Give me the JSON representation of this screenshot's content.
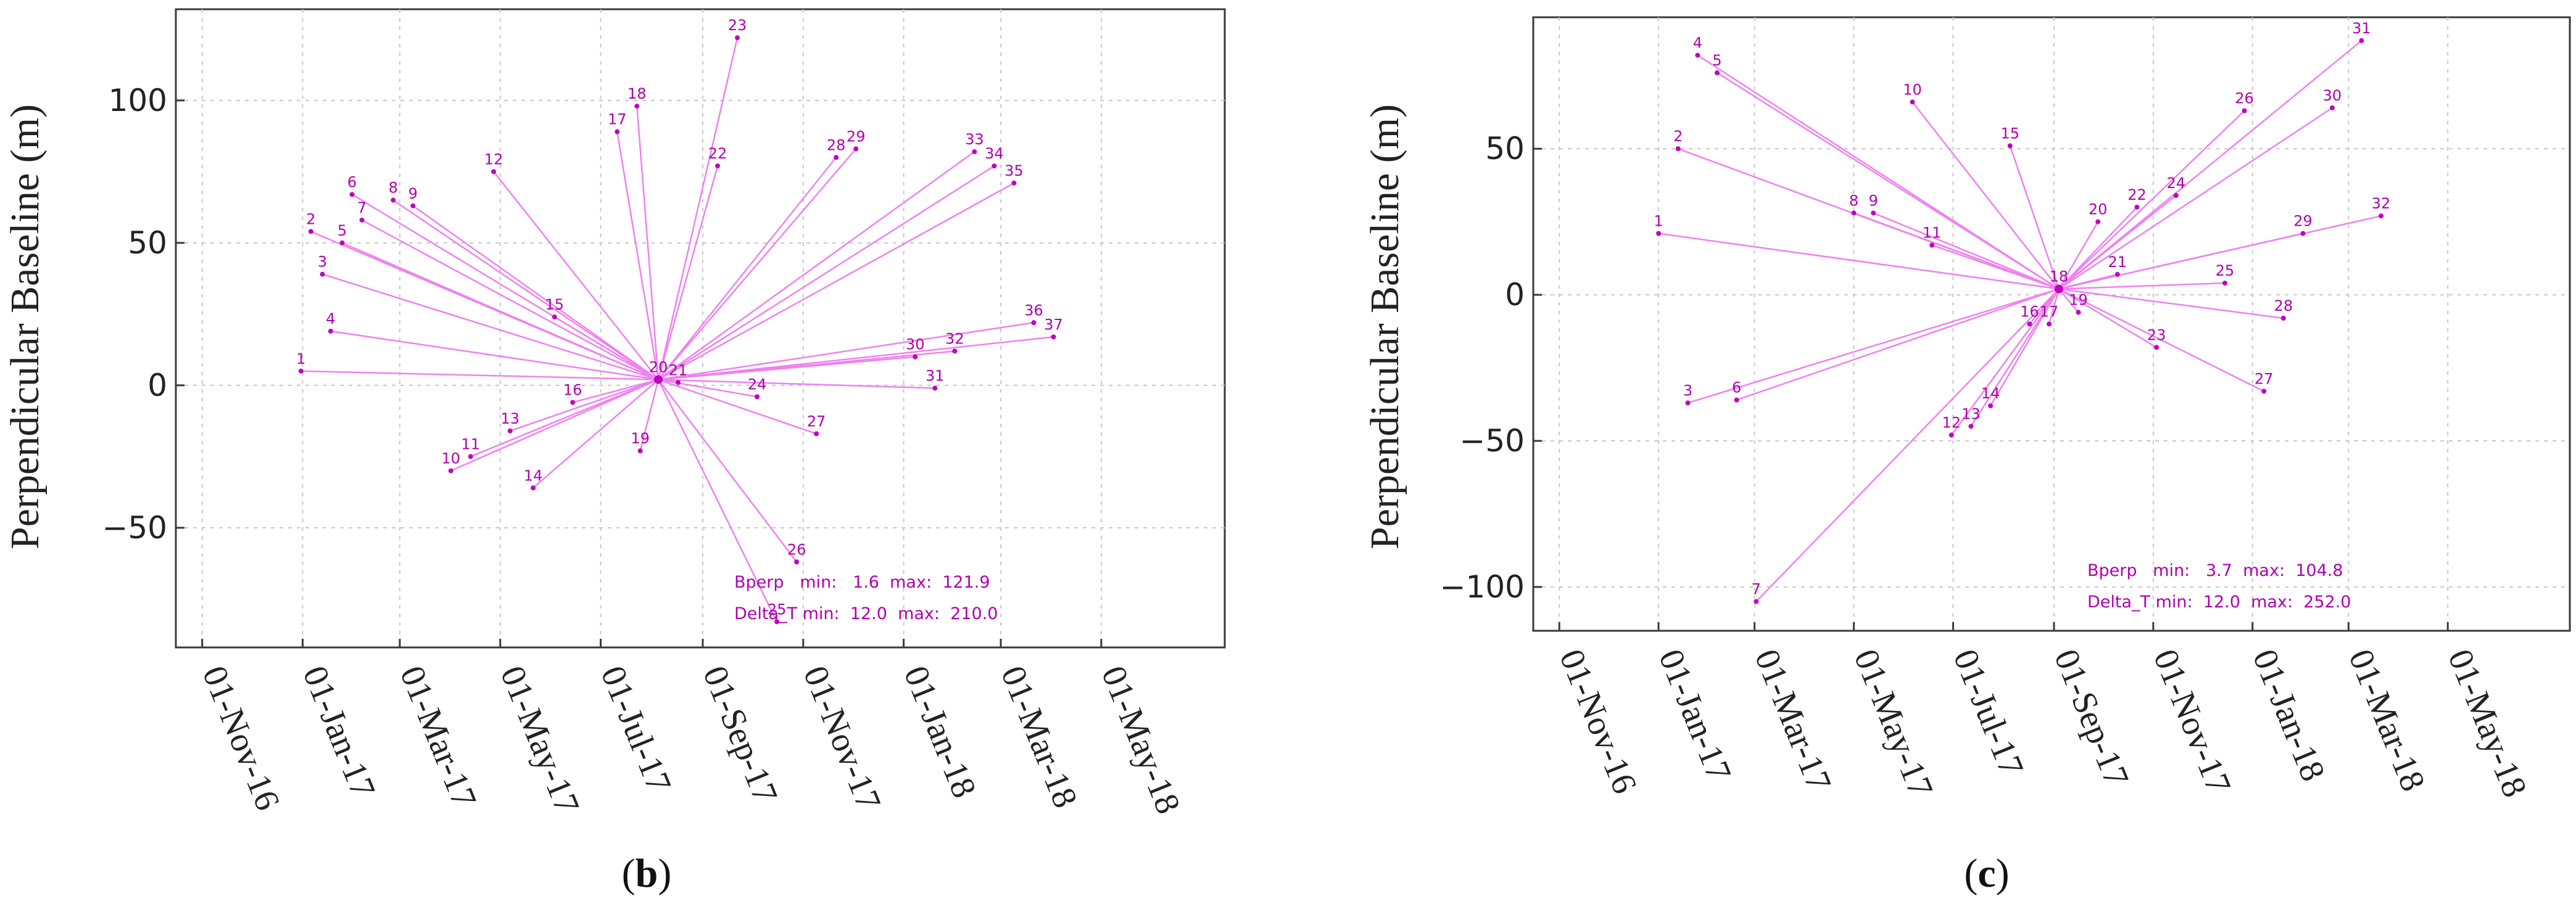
{
  "chart_data": [
    {
      "type": "scatter",
      "panel_label": "b",
      "ylabel": "Perpendicular Baseline (m)",
      "xlabel": "",
      "ylim": [
        -92,
        132
      ],
      "xlim_days": [
        -77,
        560
      ],
      "yticks": [
        -50,
        0,
        50,
        100
      ],
      "ytick_labels": [
        "−50",
        "0",
        "50",
        "100"
      ],
      "xtick_days": [
        -61,
        0,
        59,
        120,
        181,
        243,
        304,
        365,
        424,
        485
      ],
      "xtick_labels": [
        "01-Nov-16",
        "01-Jan-17",
        "01-Mar-17",
        "01-May-17",
        "01-Jul-17",
        "01-Sep-17",
        "01-Nov-17",
        "01-Jan-18",
        "01-Mar-18",
        "01-May-18"
      ],
      "grid": true,
      "super_master": {
        "id": "20",
        "day": 216,
        "baseline": 2
      },
      "stats_lines": [
        "Bperp   min:   1.6  max:  121.9",
        "Delta_T min:  12.0  max:  210.0"
      ],
      "points": [
        {
          "id": "1",
          "day": -1,
          "baseline": 5
        },
        {
          "id": "2",
          "day": 5,
          "baseline": 54
        },
        {
          "id": "3",
          "day": 12,
          "baseline": 39
        },
        {
          "id": "4",
          "day": 17,
          "baseline": 19
        },
        {
          "id": "5",
          "day": 24,
          "baseline": 50
        },
        {
          "id": "6",
          "day": 30,
          "baseline": 67
        },
        {
          "id": "7",
          "day": 36,
          "baseline": 58
        },
        {
          "id": "8",
          "day": 55,
          "baseline": 65
        },
        {
          "id": "9",
          "day": 67,
          "baseline": 63
        },
        {
          "id": "10",
          "day": 90,
          "baseline": -30
        },
        {
          "id": "11",
          "day": 102,
          "baseline": -25
        },
        {
          "id": "12",
          "day": 116,
          "baseline": 75
        },
        {
          "id": "13",
          "day": 126,
          "baseline": -16
        },
        {
          "id": "14",
          "day": 140,
          "baseline": -36
        },
        {
          "id": "15",
          "day": 153,
          "baseline": 24
        },
        {
          "id": "16",
          "day": 164,
          "baseline": -6
        },
        {
          "id": "17",
          "day": 191,
          "baseline": 89
        },
        {
          "id": "18",
          "day": 203,
          "baseline": 98
        },
        {
          "id": "19",
          "day": 205,
          "baseline": -23
        },
        {
          "id": "21",
          "day": 228,
          "baseline": 1
        },
        {
          "id": "22",
          "day": 252,
          "baseline": 77
        },
        {
          "id": "23",
          "day": 264,
          "baseline": 122
        },
        {
          "id": "24",
          "day": 276,
          "baseline": -4
        },
        {
          "id": "25",
          "day": 288,
          "baseline": -83
        },
        {
          "id": "26",
          "day": 300,
          "baseline": -62
        },
        {
          "id": "27",
          "day": 312,
          "baseline": -17
        },
        {
          "id": "28",
          "day": 324,
          "baseline": 80
        },
        {
          "id": "29",
          "day": 336,
          "baseline": 83
        },
        {
          "id": "30",
          "day": 372,
          "baseline": 10
        },
        {
          "id": "31",
          "day": 384,
          "baseline": -1
        },
        {
          "id": "32",
          "day": 396,
          "baseline": 12
        },
        {
          "id": "33",
          "day": 408,
          "baseline": 82
        },
        {
          "id": "34",
          "day": 420,
          "baseline": 77
        },
        {
          "id": "35",
          "day": 432,
          "baseline": 71
        },
        {
          "id": "36",
          "day": 444,
          "baseline": 22
        },
        {
          "id": "37",
          "day": 456,
          "baseline": 17
        }
      ]
    },
    {
      "type": "scatter",
      "panel_label": "c",
      "ylabel": "Perpendicular Baseline (m)",
      "xlabel": "",
      "ylim": [
        -115,
        95
      ],
      "xlim_days": [
        -77,
        560
      ],
      "yticks": [
        -100,
        -50,
        0,
        50
      ],
      "ytick_labels": [
        "−100",
        "−50",
        "0",
        "50"
      ],
      "xtick_days": [
        -61,
        0,
        59,
        120,
        181,
        243,
        304,
        365,
        424,
        485
      ],
      "xtick_labels": [
        "01-Nov-16",
        "01-Jan-17",
        "01-Mar-17",
        "01-May-17",
        "01-Jul-17",
        "01-Sep-17",
        "01-Nov-17",
        "01-Jan-18",
        "01-Mar-18",
        "01-May-18"
      ],
      "grid": true,
      "super_master": {
        "id": "18",
        "day": 246,
        "baseline": 2
      },
      "stats_lines": [
        "Bperp   min:   3.7  max:  104.8",
        "Delta_T min:  12.0  max:  252.0"
      ],
      "points": [
        {
          "id": "1",
          "day": 0,
          "baseline": 21
        },
        {
          "id": "2",
          "day": 12,
          "baseline": 50
        },
        {
          "id": "3",
          "day": 18,
          "baseline": -37
        },
        {
          "id": "4",
          "day": 24,
          "baseline": 82
        },
        {
          "id": "5",
          "day": 36,
          "baseline": 76
        },
        {
          "id": "6",
          "day": 48,
          "baseline": -36
        },
        {
          "id": "7",
          "day": 60,
          "baseline": -105
        },
        {
          "id": "8",
          "day": 120,
          "baseline": 28
        },
        {
          "id": "9",
          "day": 132,
          "baseline": 28
        },
        {
          "id": "10",
          "day": 156,
          "baseline": 66
        },
        {
          "id": "11",
          "day": 168,
          "baseline": 17
        },
        {
          "id": "12",
          "day": 180,
          "baseline": -48
        },
        {
          "id": "13",
          "day": 192,
          "baseline": -45
        },
        {
          "id": "14",
          "day": 204,
          "baseline": -38
        },
        {
          "id": "15",
          "day": 216,
          "baseline": 51
        },
        {
          "id": "16",
          "day": 228,
          "baseline": -10
        },
        {
          "id": "17",
          "day": 240,
          "baseline": -10
        },
        {
          "id": "19",
          "day": 258,
          "baseline": -6
        },
        {
          "id": "20",
          "day": 270,
          "baseline": 25
        },
        {
          "id": "21",
          "day": 282,
          "baseline": 7
        },
        {
          "id": "22",
          "day": 294,
          "baseline": 30
        },
        {
          "id": "23",
          "day": 306,
          "baseline": -18
        },
        {
          "id": "24",
          "day": 318,
          "baseline": 34
        },
        {
          "id": "25",
          "day": 348,
          "baseline": 4
        },
        {
          "id": "26",
          "day": 360,
          "baseline": 63
        },
        {
          "id": "27",
          "day": 372,
          "baseline": -33
        },
        {
          "id": "28",
          "day": 384,
          "baseline": -8
        },
        {
          "id": "29",
          "day": 396,
          "baseline": 21
        },
        {
          "id": "30",
          "day": 414,
          "baseline": 64
        },
        {
          "id": "31",
          "day": 432,
          "baseline": 87
        },
        {
          "id": "32",
          "day": 444,
          "baseline": 27
        }
      ]
    }
  ]
}
